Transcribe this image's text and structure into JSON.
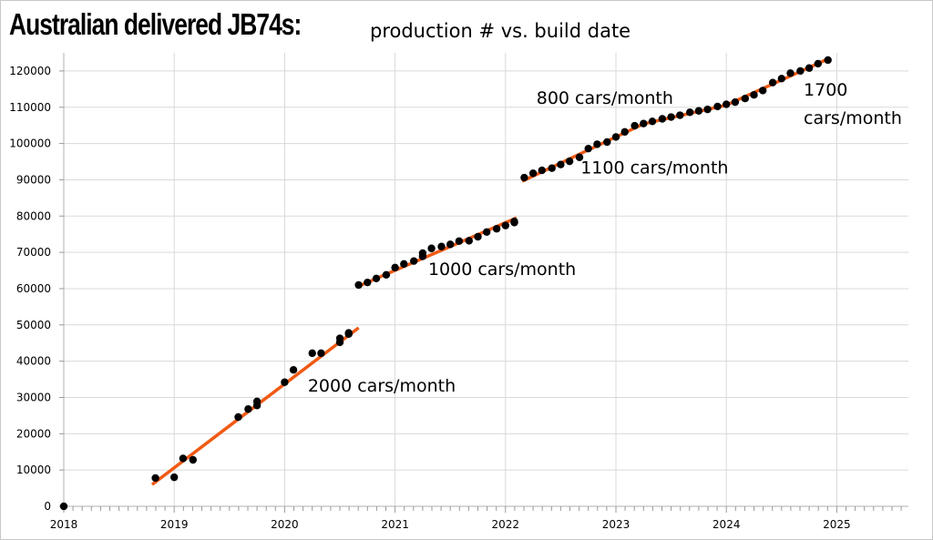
{
  "title": {
    "main": "Australian delivered JB74s:",
    "sub": "production # vs. build date"
  },
  "chart_data": {
    "type": "scatter",
    "title": "Australian delivered JB74s: production # vs. build date",
    "xlabel": "",
    "ylabel": "",
    "xlim": [
      2018,
      2025.65
    ],
    "ylim": [
      0,
      125000
    ],
    "x_ticks": [
      "2018",
      "2019",
      "2020",
      "2021",
      "2022",
      "2023",
      "2024",
      "2025"
    ],
    "y_ticks": [
      "0",
      "10000",
      "20000",
      "30000",
      "40000",
      "50000",
      "60000",
      "70000",
      "80000",
      "90000",
      "100000",
      "110000",
      "120000"
    ],
    "grid": true,
    "colors": {
      "points": "#000000",
      "trend": "#f05a14",
      "grid": "#d9d9d9"
    },
    "series": [
      {
        "x": [
          2018.0,
          2018.83,
          2019.0,
          2019.08,
          2019.17,
          2019.58,
          2019.67,
          2019.75,
          2019.75,
          2020.0,
          2020.08,
          2020.25,
          2020.33,
          2020.5,
          2020.5,
          2020.58,
          2020.58
        ],
        "y": [
          0,
          7800,
          8000,
          13200,
          12800,
          24600,
          26800,
          28900,
          27800,
          34200,
          37600,
          42200,
          42200,
          46300,
          45200,
          47500,
          47800
        ]
      },
      {
        "x": [
          2020.67,
          2020.75,
          2020.83,
          2020.92,
          2021.0,
          2021.08,
          2021.17,
          2021.25,
          2021.25,
          2021.33,
          2021.42,
          2021.5,
          2021.58,
          2021.67,
          2021.75,
          2021.83,
          2021.92,
          2022.0,
          2022.08,
          2022.08
        ],
        "y": [
          61000,
          61700,
          62800,
          63800,
          65800,
          66800,
          67600,
          69800,
          68900,
          71100,
          71600,
          72200,
          73100,
          73200,
          74300,
          75600,
          76500,
          77400,
          78200,
          78500
        ]
      },
      {
        "x": [
          2022.17,
          2022.25,
          2022.33,
          2022.42,
          2022.5,
          2022.58,
          2022.67,
          2022.75,
          2022.83,
          2022.92,
          2023.0,
          2023.08,
          2023.17,
          2023.25,
          2023.33,
          2023.42,
          2023.5,
          2023.58,
          2023.67,
          2023.75,
          2023.83,
          2023.92,
          2024.0,
          2024.08,
          2024.17,
          2024.25,
          2024.33,
          2024.42,
          2024.5,
          2024.58,
          2024.67,
          2024.75,
          2024.83,
          2024.92
        ],
        "y": [
          90600,
          91800,
          92600,
          93200,
          94200,
          95100,
          96200,
          98600,
          99800,
          100400,
          101800,
          103200,
          104900,
          105500,
          106100,
          106800,
          107300,
          107800,
          108600,
          109000,
          109400,
          110200,
          110800,
          111400,
          112400,
          113400,
          114600,
          116800,
          117900,
          119400,
          120000,
          120800,
          122000,
          123000
        ]
      }
    ],
    "trendlines": [
      {
        "x": [
          2018.8,
          2020.67
        ],
        "y": [
          6000,
          49200
        ]
      },
      {
        "x": [
          2020.67,
          2022.1
        ],
        "y": [
          60700,
          79500
        ]
      },
      {
        "x": [
          2022.15,
          2023.25
        ],
        "y": [
          89600,
          105400
        ]
      },
      {
        "x": [
          2023.25,
          2024.0
        ],
        "y": [
          105400,
          110600
        ]
      },
      {
        "x": [
          2024.0,
          2024.92
        ],
        "y": [
          110600,
          123300
        ]
      }
    ],
    "annotations": [
      {
        "text": "2000 cars/month",
        "x": 2020.21,
        "y": 31600
      },
      {
        "text": "1000 cars/month",
        "x": 2021.3,
        "y": 63800
      },
      {
        "text": "800 cars/month",
        "x": 2022.28,
        "y": 110900
      },
      {
        "text": "1100 cars/month",
        "x": 2022.68,
        "y": 91700
      },
      {
        "text": "1700",
        "x": 2024.7,
        "y": 113200
      },
      {
        "text": "cars/month",
        "x": 2024.7,
        "y": 105400
      }
    ]
  }
}
